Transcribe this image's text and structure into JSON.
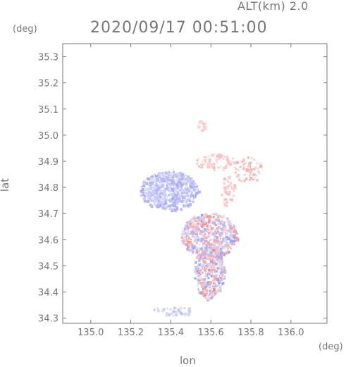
{
  "header": {
    "altitude_label": "ALT(km) 2.0",
    "datetime": "2020/09/17 00:51:00"
  },
  "axes": {
    "x": {
      "label": "lon",
      "unit": "(deg)",
      "ticks": [
        "135.0",
        "135.2",
        "135.4",
        "135.6",
        "135.8",
        "136.0"
      ],
      "tick_values": [
        135.0,
        135.2,
        135.4,
        135.6,
        135.8,
        136.0
      ],
      "range": [
        134.86,
        136.18
      ]
    },
    "y": {
      "label": "lat",
      "unit": "(deg)",
      "ticks": [
        "34.3",
        "34.4",
        "34.5",
        "34.6",
        "34.7",
        "34.8",
        "34.9",
        "35.0",
        "35.1",
        "35.2",
        "35.3"
      ],
      "tick_values": [
        34.3,
        34.4,
        34.5,
        34.6,
        34.7,
        34.8,
        34.9,
        35.0,
        35.1,
        35.2,
        35.3
      ],
      "range": [
        34.28,
        35.35
      ]
    }
  },
  "colors": {
    "frame": "#777777",
    "text": "#777777",
    "approaching": "#8a8ff0",
    "receding": "#f07a7a",
    "background": "#ffffff"
  },
  "chart_data": {
    "type": "heatmap",
    "quantity": "doppler radial velocity",
    "clusters": [
      {
        "name": "north-west blob",
        "lon": 135.39,
        "lat": 34.79,
        "sign": "approaching",
        "strength": 0.7
      },
      {
        "name": "north-west patches",
        "lon": 135.33,
        "lat": 34.78,
        "sign": "approaching",
        "strength": 0.5
      },
      {
        "name": "northern spot",
        "lon": 135.55,
        "lat": 35.04,
        "sign": "receding",
        "strength": 0.3
      },
      {
        "name": "north ring",
        "lon": 135.62,
        "lat": 34.9,
        "sign": "receding",
        "strength": 0.4
      },
      {
        "name": "north-east patches",
        "lon": 135.78,
        "lat": 34.87,
        "sign": "receding",
        "strength": 0.5
      },
      {
        "name": "east ring",
        "lon": 135.68,
        "lat": 34.79,
        "sign": "receding",
        "strength": 0.4
      },
      {
        "name": "central area",
        "lon": 135.59,
        "lat": 34.62,
        "sign": "mixed",
        "strength": 0.8
      },
      {
        "name": "southern tail",
        "lon": 135.59,
        "lat": 34.48,
        "sign": "mixed",
        "strength": 0.8
      },
      {
        "name": "southern spot",
        "lon": 135.41,
        "lat": 34.33,
        "sign": "approaching",
        "strength": 0.4
      }
    ]
  }
}
